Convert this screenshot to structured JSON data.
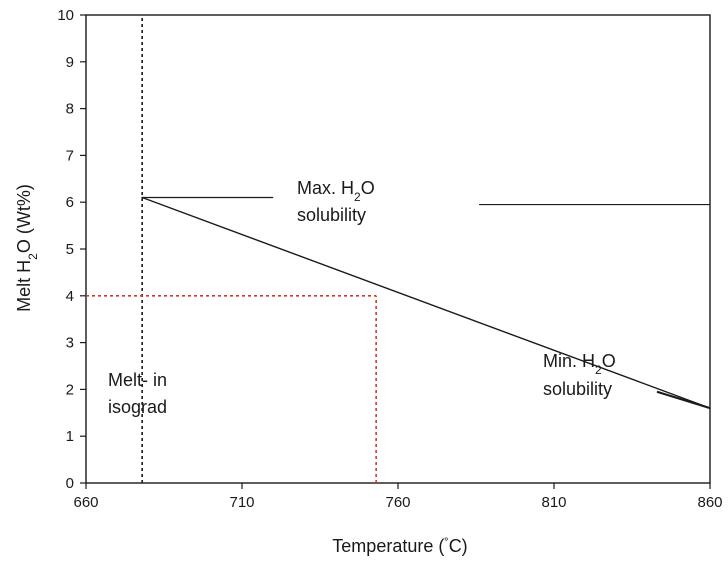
{
  "chart_data": {
    "type": "line",
    "xlabel": "Temperature (°C)",
    "xlabel_parts": {
      "main": "Temperature (",
      "deg": "˚",
      "unit": "C)"
    },
    "ylabel": "Melt H2O (Wt%)",
    "ylabel_parts": {
      "pre": "Melt H",
      "sub": "2",
      "post": "O (Wt%)"
    },
    "xlim": [
      660,
      860
    ],
    "ylim": [
      0,
      10
    ],
    "xticks": [
      660,
      710,
      760,
      810,
      860
    ],
    "yticks": [
      0,
      1,
      2,
      3,
      4,
      5,
      6,
      7,
      8,
      9,
      10
    ],
    "grid": false,
    "series": [
      {
        "points": [
          [
            678,
            6.1
          ],
          [
            860,
            1.6
          ]
        ],
        "color": "#1a1a1a",
        "style": "solid"
      }
    ],
    "reference_lines": [
      {
        "points": [
          [
            678,
            0
          ],
          [
            678,
            10
          ]
        ],
        "color": "#1a1a1a",
        "style": "dotted"
      },
      {
        "points": [
          [
            660,
            4
          ],
          [
            753,
            4
          ]
        ],
        "color": "#d33a2c",
        "style": "dotted"
      },
      {
        "points": [
          [
            753,
            0
          ],
          [
            753,
            4
          ]
        ],
        "color": "#d33a2c",
        "style": "dotted"
      }
    ],
    "annotations": {
      "max_label": {
        "line1_pre": "Max. H",
        "line1_sub": "2",
        "line1_post": "O",
        "line2": "solubility"
      },
      "min_label": {
        "line1_pre": "Min. H",
        "line1_sub": "2",
        "line1_post": "O",
        "line2": "solubility"
      },
      "melt_label": {
        "line1": "Melt- in",
        "line2": "isograd"
      }
    },
    "leaders": [
      {
        "points": [
          [
            678,
            6.1
          ],
          [
            720,
            6.1
          ]
        ]
      },
      {
        "points": [
          [
            786,
            5.95
          ],
          [
            860,
            5.95
          ]
        ]
      },
      {
        "points": [
          [
            843,
            1.95
          ],
          [
            860,
            1.6
          ]
        ]
      }
    ]
  }
}
